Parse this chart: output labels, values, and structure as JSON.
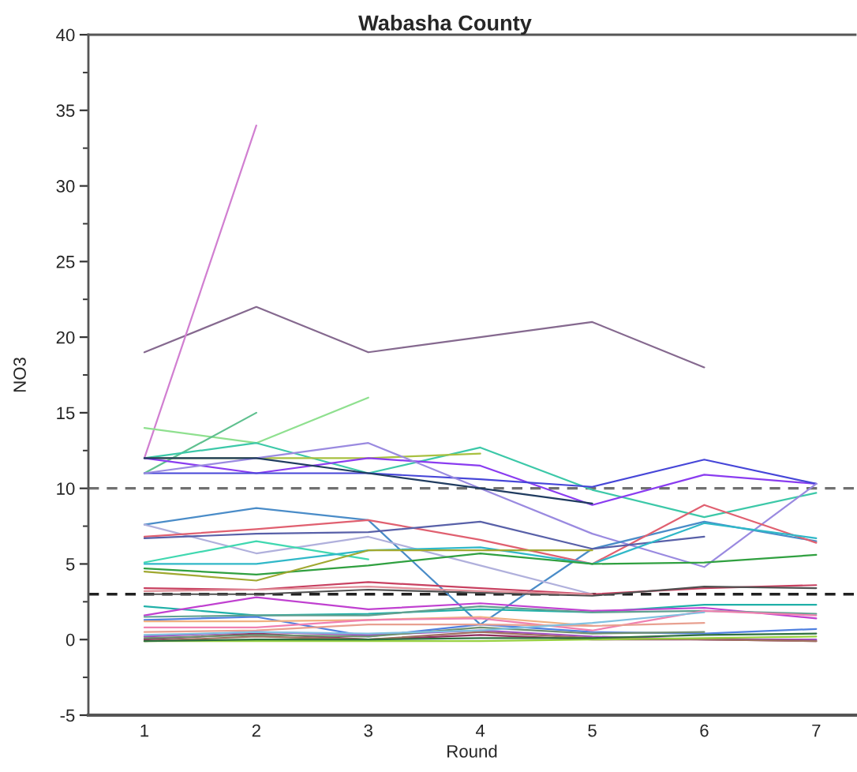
{
  "chart_data": {
    "type": "line",
    "title": "Wabasha County",
    "xlabel": "Round",
    "ylabel": "NO3",
    "x": [
      1,
      2,
      3,
      4,
      5,
      6,
      7
    ],
    "xlim": [
      0.5,
      7.35
    ],
    "xticks": [
      1,
      2,
      3,
      4,
      5,
      6,
      7
    ],
    "ylim": [
      -5,
      40
    ],
    "yticks": [
      -5,
      {
        "value": -2.5,
        "label": null
      },
      0,
      {
        "value": 2.5,
        "label": null
      },
      5,
      {
        "value": 7.5,
        "label": null
      },
      10,
      {
        "value": 12.5,
        "label": null
      },
      15,
      {
        "value": 17.5,
        "label": null
      },
      20,
      {
        "value": 22.5,
        "label": null
      },
      25,
      {
        "value": 27.5,
        "label": null
      },
      30,
      {
        "value": 32.5,
        "label": null
      },
      35,
      {
        "value": 37.5,
        "label": null
      },
      40
    ],
    "ref_lines": [
      {
        "axis": "y",
        "value": 10,
        "color": "#707070",
        "line_style": "dashed"
      },
      {
        "axis": "y",
        "value": 3,
        "color": "#202020",
        "line_style": "dashed"
      }
    ],
    "series": [
      {
        "color": "#85698f",
        "values": [
          19,
          22,
          19,
          20,
          21,
          18,
          null
        ]
      },
      {
        "color": "#d17fd1",
        "values": [
          12,
          34,
          null,
          null,
          null,
          null,
          null
        ]
      },
      {
        "color": "#8fe08f",
        "values": [
          14,
          13,
          16,
          null,
          null,
          null,
          null
        ]
      },
      {
        "color": "#5fc08f",
        "values": [
          11,
          15,
          null,
          null,
          null,
          null,
          null
        ]
      },
      {
        "color": "#3cc8a8",
        "values": [
          12,
          13,
          11,
          12.7,
          9.9,
          8.1,
          9.7
        ]
      },
      {
        "color": "#a8c040",
        "values": [
          12,
          12,
          12,
          12.3,
          null,
          null,
          null
        ]
      },
      {
        "color": "#8a3cf0",
        "values": [
          12,
          11,
          12,
          11.5,
          8.9,
          10.9,
          10.3
        ]
      },
      {
        "color": "#4646d8",
        "values": [
          11,
          11,
          11,
          10.6,
          10.1,
          11.9,
          10.3
        ]
      },
      {
        "color": "#9a8ae0",
        "values": [
          11,
          12,
          13,
          10,
          7,
          4.8,
          10.3
        ]
      },
      {
        "color": "#203c60",
        "values": [
          12,
          12,
          11,
          10,
          9,
          null,
          null
        ]
      },
      {
        "color": "#4a8cc8",
        "values": [
          7.6,
          8.7,
          7.9,
          1.0,
          6.0,
          7.8,
          6.5
        ]
      },
      {
        "color": "#b0b0dc",
        "values": [
          7.6,
          5.7,
          6.8,
          4.9,
          3.0,
          null,
          null
        ]
      },
      {
        "color": "#e06070",
        "values": [
          6.8,
          7.3,
          7.9,
          6.6,
          5.0,
          8.9,
          6.4
        ]
      },
      {
        "color": "#5860a8",
        "values": [
          6.7,
          7.0,
          7.1,
          7.8,
          6.0,
          6.8,
          null
        ]
      },
      {
        "color": "#40d8b0",
        "values": [
          5.1,
          6.5,
          5.3,
          null,
          null,
          null,
          null
        ]
      },
      {
        "color": "#30b8c8",
        "values": [
          5.0,
          5.0,
          5.9,
          6.1,
          5.0,
          7.7,
          6.7
        ]
      },
      {
        "color": "#30a040",
        "values": [
          4.7,
          4.3,
          4.9,
          5.7,
          5.0,
          5.1,
          5.6
        ]
      },
      {
        "color": "#a0a830",
        "values": [
          4.5,
          3.9,
          5.9,
          5.9,
          5.9,
          null,
          null
        ]
      },
      {
        "color": "#c84060",
        "values": [
          3.4,
          3.3,
          3.8,
          3.4,
          3.0,
          3.4,
          3.6
        ]
      },
      {
        "color": "#505050",
        "values": [
          3.0,
          3.0,
          3.3,
          3.1,
          2.9,
          3.5,
          3.4
        ]
      },
      {
        "color": "#e0909a",
        "values": [
          3.2,
          3.3,
          3.5,
          3.2,
          3.0,
          null,
          null
        ]
      },
      {
        "color": "#20b0a8",
        "values": [
          2.2,
          1.6,
          1.7,
          2.0,
          1.8,
          2.3,
          2.3
        ]
      },
      {
        "color": "#c040d0",
        "values": [
          1.6,
          2.8,
          2.0,
          2.4,
          1.9,
          2.1,
          1.4
        ]
      },
      {
        "color": "#60a090",
        "values": [
          1.5,
          1.6,
          1.6,
          2.2,
          1.8,
          1.9,
          1.7
        ]
      },
      {
        "color": "#5080e0",
        "values": [
          1.3,
          1.5,
          0.2,
          1.0,
          0.5,
          0.4,
          0.7
        ]
      },
      {
        "color": "#f0b080",
        "values": [
          1.2,
          1.2,
          1.3,
          1.5,
          0.9,
          null,
          null
        ]
      },
      {
        "color": "#f080b0",
        "values": [
          0.8,
          0.8,
          1.3,
          1.4,
          0.6,
          1.9,
          1.6
        ]
      },
      {
        "color": "#e8a090",
        "values": [
          0.5,
          0.6,
          1.0,
          1.0,
          0.9,
          1.1,
          null
        ]
      },
      {
        "color": "#a050c0",
        "values": [
          0.2,
          0.5,
          0.3,
          0.6,
          0.2,
          0.0,
          0.0
        ]
      },
      {
        "color": "#903060",
        "values": [
          0.0,
          0.4,
          0.0,
          0.3,
          0.0,
          0.0,
          -0.1
        ]
      },
      {
        "color": "#a07060",
        "values": [
          -0.1,
          0.2,
          0.0,
          0.5,
          0.1,
          0.0,
          -0.1
        ]
      },
      {
        "color": "#98d040",
        "values": [
          -0.1,
          -0.1,
          -0.1,
          -0.1,
          0.0,
          0.1,
          0.2
        ]
      },
      {
        "color": "#709070",
        "values": [
          0.1,
          0.3,
          0.2,
          0.8,
          0.4,
          0.5,
          null
        ]
      },
      {
        "color": "#80c0e0",
        "values": [
          0.3,
          0.5,
          0.4,
          0.6,
          1.1,
          1.8,
          null
        ]
      },
      {
        "color": "#2e6f3e",
        "values": [
          -0.1,
          0.0,
          0.0,
          0.1,
          0.1,
          0.3,
          0.4
        ]
      }
    ]
  }
}
